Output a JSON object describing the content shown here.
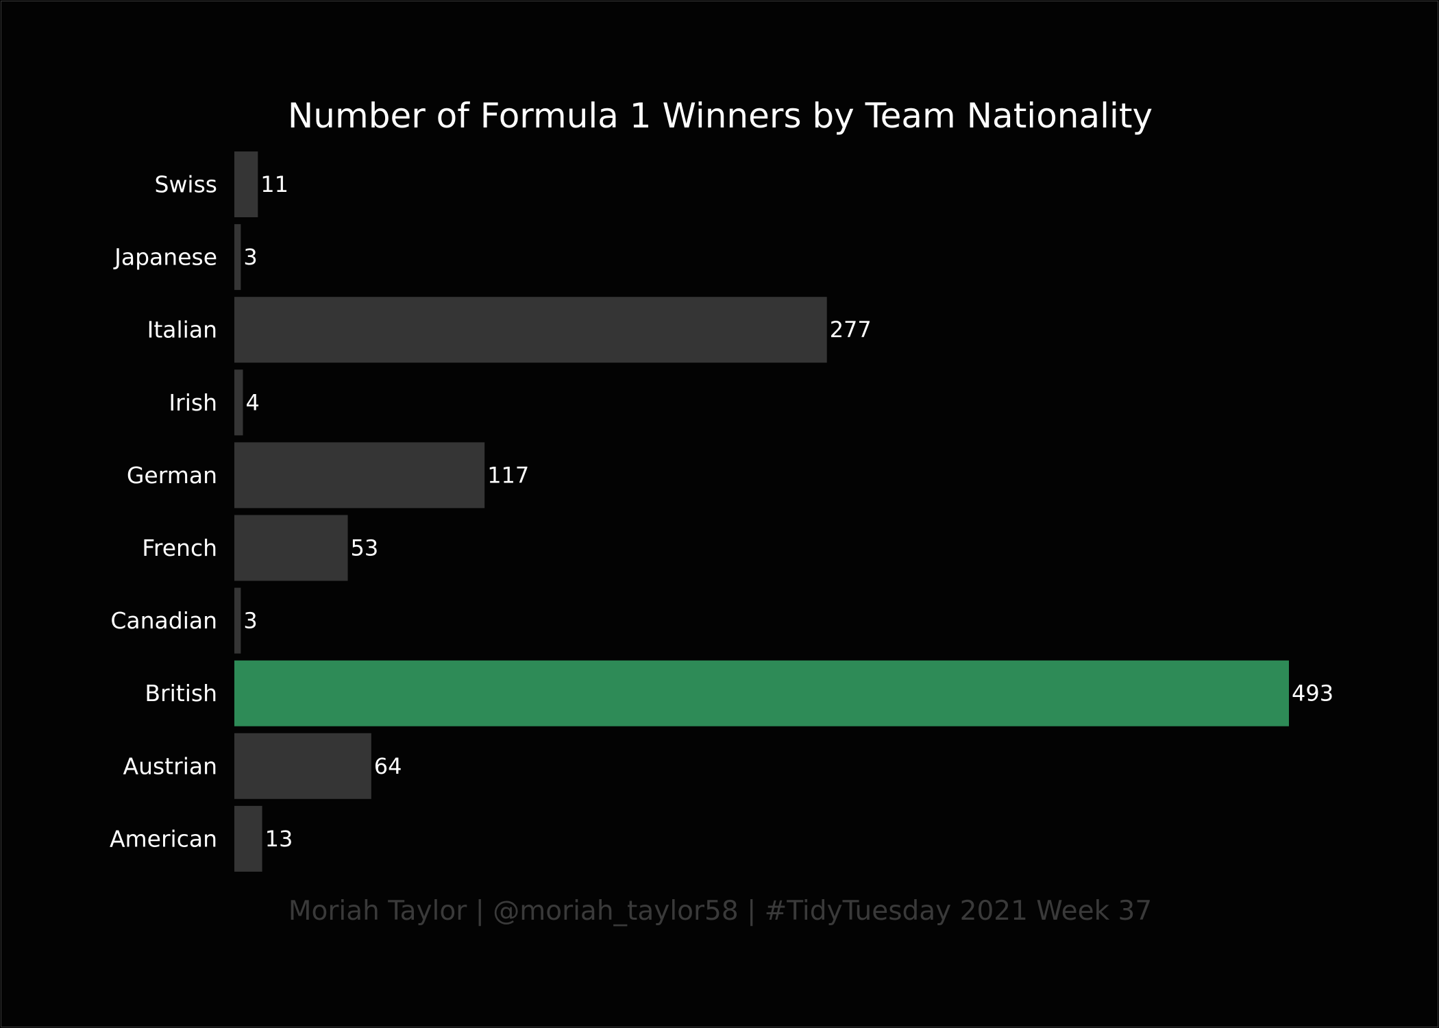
{
  "chart_data": {
    "type": "bar",
    "orientation": "horizontal",
    "title": "Number of Formula 1 Winners by Team Nationality",
    "caption": "Moriah Taylor | @moriah_taylor58 | #TidyTuesday 2021 Week 37",
    "categories": [
      "Swiss",
      "Japanese",
      "Italian",
      "Irish",
      "German",
      "French",
      "Canadian",
      "British",
      "Austrian",
      "American"
    ],
    "values": [
      11,
      3,
      277,
      4,
      117,
      53,
      3,
      493,
      64,
      13
    ],
    "highlight": "British",
    "xlim": [
      0,
      493
    ],
    "grid": false,
    "legend": "none",
    "colors": {
      "background": "#030303",
      "bar": "#353535",
      "highlight": "#2e8b57",
      "text": "#ffffff",
      "caption": "#3a3a3a"
    }
  }
}
